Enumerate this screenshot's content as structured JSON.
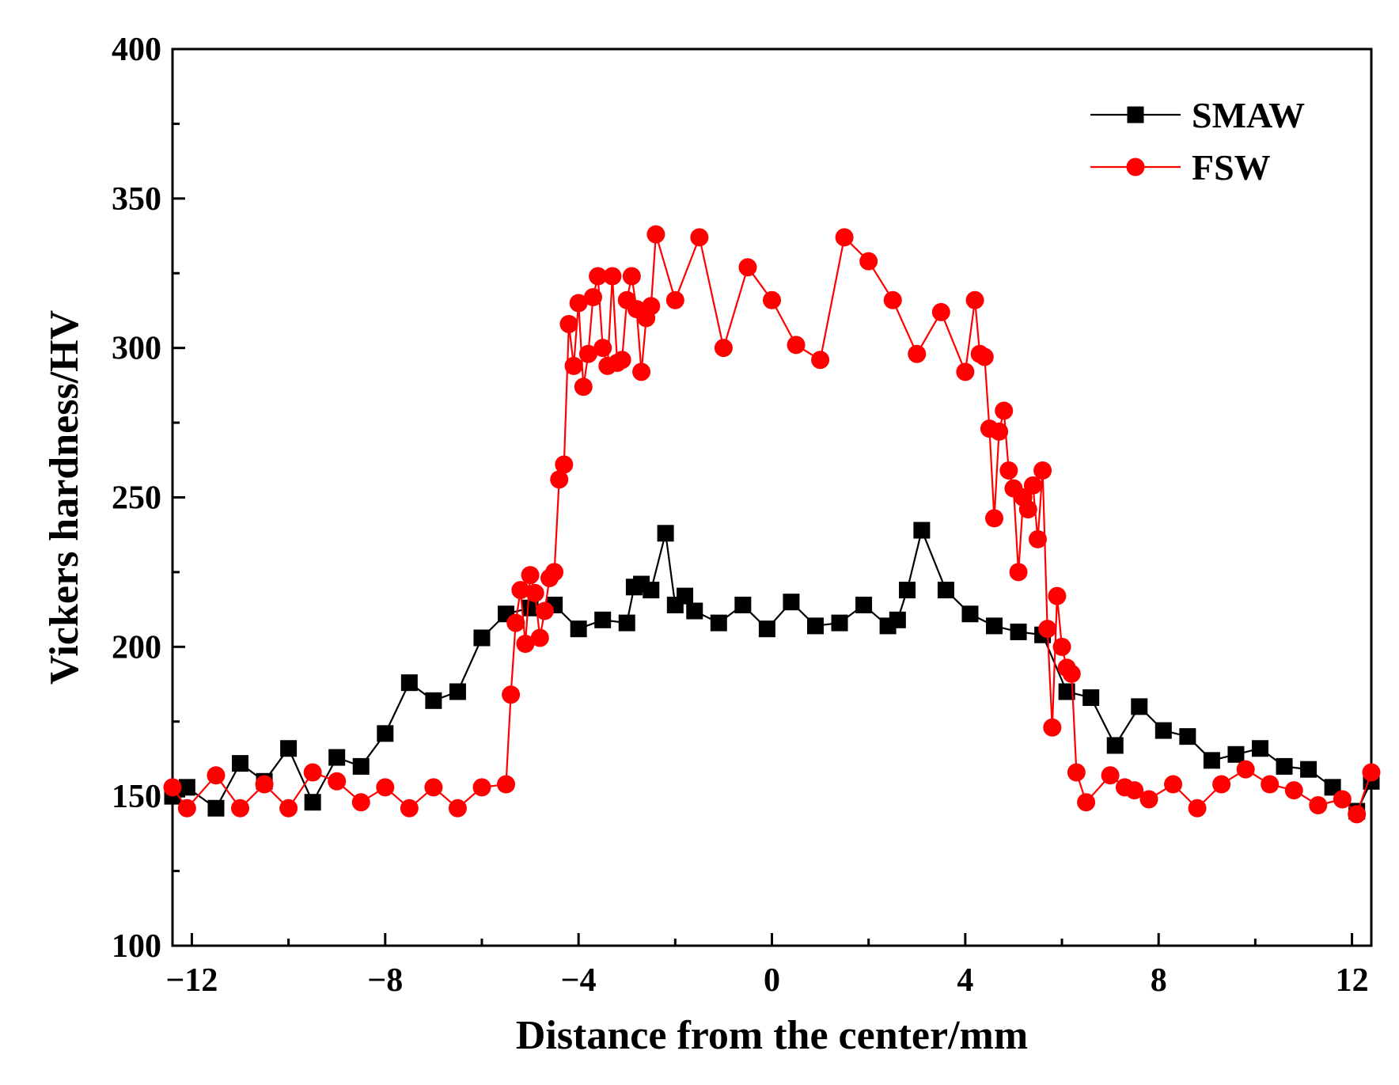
{
  "chart_data": {
    "type": "line",
    "title": "",
    "xlabel": "Distance from the center/mm",
    "ylabel": "Vickers hardness/HV",
    "xlim": [
      -12.4,
      12.4
    ],
    "ylim": [
      100,
      400
    ],
    "xticks": [
      -12,
      -8,
      -4,
      0,
      4,
      8,
      12
    ],
    "xtick_labels": [
      "−12",
      "−8",
      "−4",
      "0",
      "4",
      "8",
      "12"
    ],
    "yticks": [
      100,
      150,
      200,
      250,
      300,
      350,
      400
    ],
    "ytick_labels": [
      "100",
      "150",
      "200",
      "250",
      "300",
      "350",
      "400"
    ],
    "legend_position": "top-right",
    "series": [
      {
        "name": "SMAW",
        "color": "#000000",
        "marker": "square",
        "points": [
          [
            -12.4,
            150
          ],
          [
            -12.1,
            153
          ],
          [
            -11.5,
            146
          ],
          [
            -11,
            161
          ],
          [
            -10.5,
            155
          ],
          [
            -10,
            166
          ],
          [
            -9.5,
            148
          ],
          [
            -9,
            163
          ],
          [
            -8.5,
            160
          ],
          [
            -8,
            171
          ],
          [
            -7.5,
            188
          ],
          [
            -7,
            182
          ],
          [
            -6.5,
            185
          ],
          [
            -6,
            203
          ],
          [
            -5.5,
            211
          ],
          [
            -5,
            213
          ],
          [
            -4.5,
            214
          ],
          [
            -4,
            206
          ],
          [
            -3.5,
            209
          ],
          [
            -3,
            208
          ],
          [
            -2.85,
            220
          ],
          [
            -2.7,
            221
          ],
          [
            -2.5,
            219
          ],
          [
            -2.2,
            238
          ],
          [
            -2,
            214
          ],
          [
            -1.8,
            217
          ],
          [
            -1.6,
            212
          ],
          [
            -1.1,
            208
          ],
          [
            -0.6,
            214
          ],
          [
            -0.1,
            206
          ],
          [
            0.4,
            215
          ],
          [
            0.9,
            207
          ],
          [
            1.4,
            208
          ],
          [
            1.9,
            214
          ],
          [
            2.4,
            207
          ],
          [
            2.6,
            209
          ],
          [
            2.8,
            219
          ],
          [
            3.1,
            239
          ],
          [
            3.6,
            219
          ],
          [
            4.1,
            211
          ],
          [
            4.6,
            207
          ],
          [
            5.1,
            205
          ],
          [
            5.6,
            204
          ],
          [
            6.1,
            185
          ],
          [
            6.6,
            183
          ],
          [
            7.1,
            167
          ],
          [
            7.6,
            180
          ],
          [
            8.1,
            172
          ],
          [
            8.6,
            170
          ],
          [
            9.1,
            162
          ],
          [
            9.6,
            164
          ],
          [
            10.1,
            166
          ],
          [
            10.6,
            160
          ],
          [
            11.1,
            159
          ],
          [
            11.6,
            153
          ],
          [
            12.1,
            145
          ],
          [
            12.4,
            155
          ]
        ]
      },
      {
        "name": "FSW",
        "color": "#ff0000",
        "marker": "circle",
        "points": [
          [
            -12.4,
            153
          ],
          [
            -12.1,
            146
          ],
          [
            -11.5,
            157
          ],
          [
            -11,
            146
          ],
          [
            -10.5,
            154
          ],
          [
            -10,
            146
          ],
          [
            -9.5,
            158
          ],
          [
            -9,
            155
          ],
          [
            -8.5,
            148
          ],
          [
            -8,
            153
          ],
          [
            -7.5,
            146
          ],
          [
            -7,
            153
          ],
          [
            -6.5,
            146
          ],
          [
            -6,
            153
          ],
          [
            -5.5,
            154
          ],
          [
            -5.4,
            184
          ],
          [
            -5.3,
            208
          ],
          [
            -5.2,
            219
          ],
          [
            -5.1,
            201
          ],
          [
            -5,
            224
          ],
          [
            -4.9,
            218
          ],
          [
            -4.8,
            203
          ],
          [
            -4.7,
            212
          ],
          [
            -4.6,
            223
          ],
          [
            -4.5,
            225
          ],
          [
            -4.4,
            256
          ],
          [
            -4.3,
            261
          ],
          [
            -4.2,
            308
          ],
          [
            -4.1,
            294
          ],
          [
            -4,
            315
          ],
          [
            -3.9,
            287
          ],
          [
            -3.8,
            298
          ],
          [
            -3.7,
            317
          ],
          [
            -3.6,
            324
          ],
          [
            -3.5,
            300
          ],
          [
            -3.4,
            294
          ],
          [
            -3.3,
            324
          ],
          [
            -3.2,
            295
          ],
          [
            -3.1,
            296
          ],
          [
            -3,
            316
          ],
          [
            -2.9,
            324
          ],
          [
            -2.8,
            313
          ],
          [
            -2.7,
            292
          ],
          [
            -2.6,
            310
          ],
          [
            -2.5,
            314
          ],
          [
            -2.4,
            338
          ],
          [
            -2,
            316
          ],
          [
            -1.5,
            337
          ],
          [
            -1,
            300
          ],
          [
            -0.5,
            327
          ],
          [
            0,
            316
          ],
          [
            0.5,
            301
          ],
          [
            1,
            296
          ],
          [
            1.5,
            337
          ],
          [
            2,
            329
          ],
          [
            2.5,
            316
          ],
          [
            3,
            298
          ],
          [
            3.5,
            312
          ],
          [
            4,
            292
          ],
          [
            4.2,
            316
          ],
          [
            4.3,
            298
          ],
          [
            4.4,
            297
          ],
          [
            4.5,
            273
          ],
          [
            4.6,
            243
          ],
          [
            4.7,
            272
          ],
          [
            4.8,
            279
          ],
          [
            4.9,
            259
          ],
          [
            5,
            253
          ],
          [
            5.1,
            225
          ],
          [
            5.2,
            250
          ],
          [
            5.3,
            246
          ],
          [
            5.4,
            254
          ],
          [
            5.5,
            236
          ],
          [
            5.6,
            259
          ],
          [
            5.7,
            206
          ],
          [
            5.8,
            173
          ],
          [
            5.9,
            217
          ],
          [
            6,
            200
          ],
          [
            6.1,
            193
          ],
          [
            6.2,
            191
          ],
          [
            6.3,
            158
          ],
          [
            6.5,
            148
          ],
          [
            7,
            157
          ],
          [
            7.3,
            153
          ],
          [
            7.5,
            152
          ],
          [
            7.8,
            149
          ],
          [
            8.3,
            154
          ],
          [
            8.8,
            146
          ],
          [
            9.3,
            154
          ],
          [
            9.8,
            159
          ],
          [
            10.3,
            154
          ],
          [
            10.8,
            152
          ],
          [
            11.3,
            147
          ],
          [
            11.8,
            149
          ],
          [
            12.1,
            144
          ],
          [
            12.4,
            158
          ]
        ]
      }
    ]
  }
}
